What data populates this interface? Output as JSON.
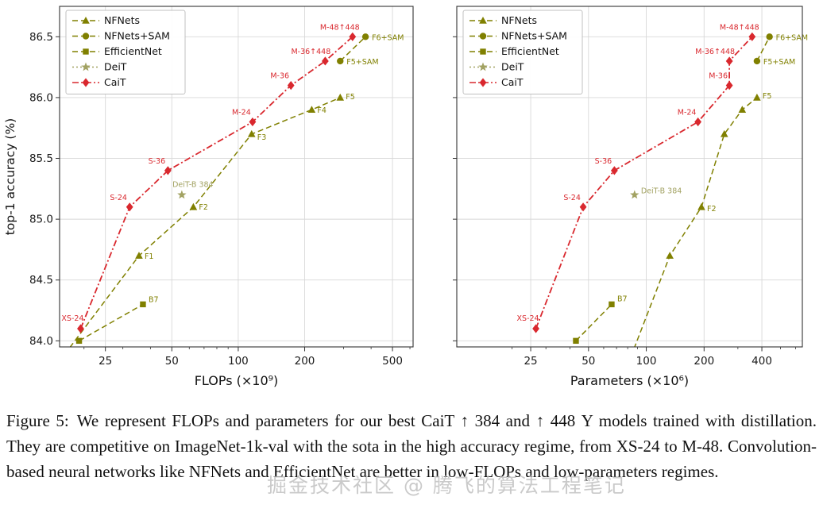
{
  "figure": {
    "caption_label": "Figure 5:",
    "caption_text": "We represent FLOPs and parameters for our best CaiT ↑ 384 and ↑ 448 Υ models trained with distillation. They are competitive on ImageNet-1k-val with the sota in the high accuracy regime, from XS-24 to M-48. Convolution-based neural networks like NFNets and EfficientNet are better in low-FLOPs and low-parameters regimes."
  },
  "watermark": "掘金技术社区 @ 腾飞的算法工程笔记",
  "colors": {
    "cnn_olive": "#808000",
    "deit_khaki": "#a2a262",
    "cait_red": "#d9282e",
    "grid": "#d8d8d8",
    "axis": "#333333",
    "text": "#1a1a1a"
  },
  "chart_data": [
    {
      "type": "line",
      "xlabel": "FLOPs (×10⁹)",
      "ylabel": "top-1 accuracy (%)",
      "xscale": "log",
      "xlim": [
        15.5,
        620
      ],
      "ylim": [
        83.95,
        86.75
      ],
      "xticks": [
        25,
        50,
        100,
        200,
        500
      ],
      "yticks": [
        84.0,
        84.5,
        85.0,
        85.5,
        86.0,
        86.5
      ],
      "show_ytick_labels": true,
      "grid": true,
      "legend_position": "top-left",
      "series": [
        {
          "name": "NFNets",
          "color_key": "cnn_olive",
          "marker": "triangle",
          "dash": "7 4",
          "points": [
            {
              "x": 12.4,
              "y": 83.6
            },
            {
              "x": 35.5,
              "y": 84.7,
              "label": "F1",
              "anchor": "start",
              "dx": 7,
              "dy": 4
            },
            {
              "x": 62.6,
              "y": 85.1,
              "label": "F2",
              "anchor": "start",
              "dx": 7,
              "dy": 3
            },
            {
              "x": 115.0,
              "y": 85.7,
              "label": "F3",
              "anchor": "start",
              "dx": 7,
              "dy": 7
            },
            {
              "x": 215.3,
              "y": 85.9,
              "label": "F4",
              "anchor": "start",
              "dx": 7,
              "dy": 4
            },
            {
              "x": 289.8,
              "y": 86.0,
              "label": "F5",
              "anchor": "start",
              "dx": 7,
              "dy": 2
            }
          ]
        },
        {
          "name": "NFNets+SAM",
          "color_key": "cnn_olive",
          "marker": "circle",
          "dash": "7 4",
          "points": [
            {
              "x": 289.8,
              "y": 86.3,
              "label": "F5+SAM",
              "anchor": "start",
              "dx": 8,
              "dy": 4
            },
            {
              "x": 377.3,
              "y": 86.5,
              "label": "F6+SAM",
              "anchor": "start",
              "dx": 8,
              "dy": 4
            }
          ]
        },
        {
          "name": "EfficientNet",
          "color_key": "cnn_olive",
          "marker": "square",
          "dash": "7 4",
          "points": [
            {
              "x": 19.0,
              "y": 84.0
            },
            {
              "x": 37.0,
              "y": 84.3,
              "label": "B7",
              "anchor": "start",
              "dx": 7,
              "dy": -3
            }
          ]
        },
        {
          "name": "DeiT",
          "color_key": "deit_khaki",
          "marker": "star",
          "dash": "2 3",
          "points": [
            {
              "x": 55.5,
              "y": 85.2,
              "label": "DeiT-B 384",
              "anchor": "middle",
              "dx": 14,
              "dy": -10
            }
          ]
        },
        {
          "name": "CaiT",
          "color_key": "cait_red",
          "marker": "diamond",
          "dash": "8 3 2 3",
          "points": [
            {
              "x": 19.3,
              "y": 84.1,
              "label": "XS-24",
              "anchor": "middle",
              "dx": -10,
              "dy": -10
            },
            {
              "x": 32.2,
              "y": 85.1,
              "label": "S-24",
              "anchor": "middle",
              "dx": -14,
              "dy": -9
            },
            {
              "x": 48.0,
              "y": 85.4,
              "label": "S-36",
              "anchor": "middle",
              "dx": -14,
              "dy": -9
            },
            {
              "x": 116.1,
              "y": 85.8,
              "label": "M-24",
              "anchor": "middle",
              "dx": -14,
              "dy": -9
            },
            {
              "x": 173.3,
              "y": 86.1,
              "label": "M-36",
              "anchor": "middle",
              "dx": -14,
              "dy": -9
            },
            {
              "x": 247.8,
              "y": 86.3,
              "label": "M-36↑448",
              "anchor": "middle",
              "dx": -18,
              "dy": -9
            },
            {
              "x": 329.6,
              "y": 86.5,
              "label": "M-48↑448",
              "anchor": "middle",
              "dx": -16,
              "dy": -9
            }
          ]
        }
      ]
    },
    {
      "type": "line",
      "xlabel": "Parameters (×10⁶)",
      "ylabel": "",
      "xscale": "log",
      "xlim": [
        10.3,
        650
      ],
      "ylim": [
        83.95,
        86.75
      ],
      "xticks": [
        25,
        50,
        100,
        200,
        400
      ],
      "yticks": [
        84.0,
        84.5,
        85.0,
        85.5,
        86.0,
        86.5
      ],
      "show_ytick_labels": false,
      "grid": true,
      "legend_position": "top-left",
      "series": [
        {
          "name": "NFNets",
          "color_key": "cnn_olive",
          "marker": "triangle",
          "dash": "7 4",
          "points": [
            {
              "x": 71.5,
              "y": 83.6
            },
            {
              "x": 132.6,
              "y": 84.7
            },
            {
              "x": 193.8,
              "y": 85.1,
              "label": "F2",
              "anchor": "start",
              "dx": 7,
              "dy": 5
            },
            {
              "x": 254.9,
              "y": 85.7
            },
            {
              "x": 316.1,
              "y": 85.9
            },
            {
              "x": 377.2,
              "y": 86.0,
              "label": "F5",
              "anchor": "start",
              "dx": 7,
              "dy": 1
            }
          ]
        },
        {
          "name": "NFNets+SAM",
          "color_key": "cnn_olive",
          "marker": "circle",
          "dash": "7 4",
          "points": [
            {
              "x": 377.2,
              "y": 86.3,
              "label": "F5+SAM",
              "anchor": "start",
              "dx": 8,
              "dy": 4
            },
            {
              "x": 438.4,
              "y": 86.5,
              "label": "F6+SAM",
              "anchor": "start",
              "dx": 8,
              "dy": 4
            }
          ]
        },
        {
          "name": "EfficientNet",
          "color_key": "cnn_olive",
          "marker": "square",
          "dash": "7 4",
          "points": [
            {
              "x": 43.0,
              "y": 84.0
            },
            {
              "x": 66.0,
              "y": 84.3,
              "label": "B7",
              "anchor": "start",
              "dx": 7,
              "dy": -4
            }
          ]
        },
        {
          "name": "DeiT",
          "color_key": "deit_khaki",
          "marker": "star",
          "dash": "2 3",
          "points": [
            {
              "x": 86.9,
              "y": 85.2,
              "label": "DeiT-B 384",
              "anchor": "start",
              "dx": 8,
              "dy": -2
            }
          ]
        },
        {
          "name": "CaiT",
          "color_key": "cait_red",
          "marker": "diamond",
          "dash": "8 3 2 3",
          "points": [
            {
              "x": 26.6,
              "y": 84.1,
              "label": "XS-24",
              "anchor": "middle",
              "dx": -10,
              "dy": -10
            },
            {
              "x": 46.9,
              "y": 85.1,
              "label": "S-24",
              "anchor": "middle",
              "dx": -14,
              "dy": -9
            },
            {
              "x": 68.2,
              "y": 85.4,
              "label": "S-36",
              "anchor": "middle",
              "dx": -14,
              "dy": -9
            },
            {
              "x": 185.9,
              "y": 85.8,
              "label": "M-24",
              "anchor": "middle",
              "dx": -14,
              "dy": -9
            },
            {
              "x": 270.9,
              "y": 86.1,
              "label": "M-36",
              "anchor": "middle",
              "dx": -14,
              "dy": -9
            },
            {
              "x": 270.9,
              "y": 86.3,
              "label": "M-36↑448",
              "anchor": "middle",
              "dx": -18,
              "dy": -9
            },
            {
              "x": 356.0,
              "y": 86.5,
              "label": "M-48↑448",
              "anchor": "middle",
              "dx": -16,
              "dy": -9
            }
          ]
        }
      ]
    }
  ]
}
